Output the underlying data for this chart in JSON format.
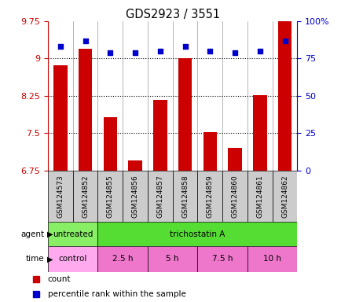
{
  "title": "GDS2923 / 3551",
  "samples": [
    "GSM124573",
    "GSM124852",
    "GSM124855",
    "GSM124856",
    "GSM124857",
    "GSM124858",
    "GSM124859",
    "GSM124860",
    "GSM124861",
    "GSM124862"
  ],
  "count_values": [
    8.87,
    9.2,
    7.82,
    6.95,
    8.17,
    9.0,
    7.52,
    7.2,
    8.27,
    9.75
  ],
  "percentile_values": [
    83,
    87,
    79,
    79,
    80,
    83,
    80,
    79,
    80,
    87
  ],
  "ylim": [
    6.75,
    9.75
  ],
  "yticks": [
    6.75,
    7.5,
    8.25,
    9.0,
    9.75
  ],
  "ytick_labels": [
    "6.75",
    "7.5",
    "8.25",
    "9",
    "9.75"
  ],
  "y2lim": [
    0,
    100
  ],
  "y2ticks": [
    0,
    25,
    50,
    75,
    100
  ],
  "y2tick_labels": [
    "0",
    "25",
    "50",
    "75",
    "100%"
  ],
  "bar_color": "#cc0000",
  "dot_color": "#0000cc",
  "bar_width": 0.55,
  "agent_row": [
    {
      "label": "untreated",
      "span": [
        0,
        2
      ],
      "color": "#88ee66"
    },
    {
      "label": "trichostatin A",
      "span": [
        2,
        10
      ],
      "color": "#55dd33"
    }
  ],
  "time_row": [
    {
      "label": "control",
      "span": [
        0,
        2
      ],
      "color": "#ffaaee"
    },
    {
      "label": "2.5 h",
      "span": [
        2,
        4
      ],
      "color": "#ee77cc"
    },
    {
      "label": "5 h",
      "span": [
        4,
        6
      ],
      "color": "#ee77cc"
    },
    {
      "label": "7.5 h",
      "span": [
        6,
        8
      ],
      "color": "#ee77cc"
    },
    {
      "label": "10 h",
      "span": [
        8,
        10
      ],
      "color": "#ee77cc"
    }
  ],
  "legend_items": [
    {
      "label": "count",
      "color": "#cc0000"
    },
    {
      "label": "percentile rank within the sample",
      "color": "#0000cc"
    }
  ],
  "dotted_lines": [
    7.5,
    8.25,
    9.0
  ],
  "tick_color_left": "#cc0000",
  "tick_color_right": "#0000cc",
  "bg_color": "#ffffff",
  "sample_bg": "#cccccc"
}
